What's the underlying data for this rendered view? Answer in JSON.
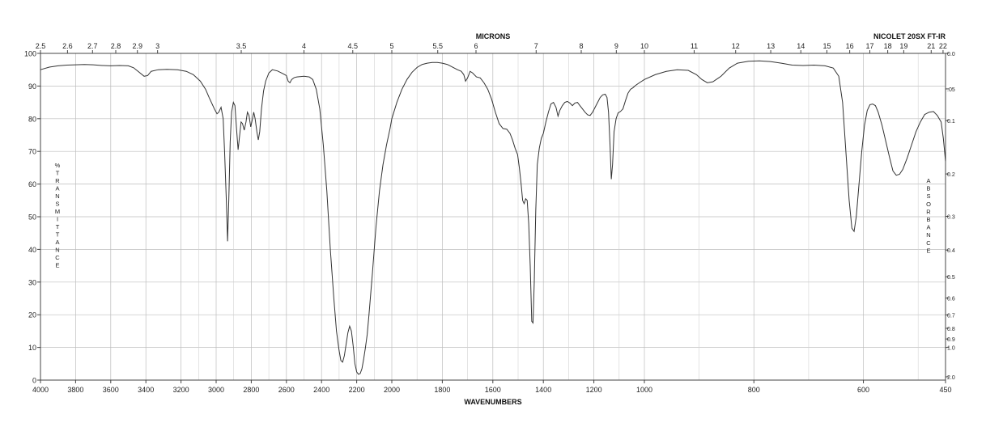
{
  "chart_data": {
    "type": "line",
    "instrument_label": "NICOLET 20SX FT-IR",
    "top_axis_title": "MICRONS",
    "bottom_axis_title": "WAVENUMBERS",
    "left_axis_title": "%\nT\nR\nA\nN\nS\nM\nI\nT\nT\nA\nN\nC\nE",
    "right_axis_title": "A\nB\nS\nO\nR\nB\nA\nN\nC\nE",
    "x_scale": "piecewise-linear wavenumber (4000-2000, 2000-1000, 1000-450 cm-1)",
    "xlim": [
      4000,
      450
    ],
    "ylim": [
      0,
      100
    ],
    "grid": true,
    "x_ticks": [
      {
        "value": 4000,
        "label": "4000"
      },
      {
        "value": 3800,
        "label": "3800"
      },
      {
        "value": 3600,
        "label": "3600"
      },
      {
        "value": 3400,
        "label": "3400"
      },
      {
        "value": 3200,
        "label": "3200"
      },
      {
        "value": 3000,
        "label": "3000"
      },
      {
        "value": 2800,
        "label": "2800"
      },
      {
        "value": 2600,
        "label": "2600"
      },
      {
        "value": 2400,
        "label": "2400"
      },
      {
        "value": 2200,
        "label": "2200"
      },
      {
        "value": 2000,
        "label": "2000"
      },
      {
        "value": 1800,
        "label": "1800"
      },
      {
        "value": 1600,
        "label": "1600"
      },
      {
        "value": 1400,
        "label": "1400"
      },
      {
        "value": 1200,
        "label": "1200"
      },
      {
        "value": 1000,
        "label": "1000"
      },
      {
        "value": 800,
        "label": "800"
      },
      {
        "value": 600,
        "label": "600"
      },
      {
        "value": 450,
        "label": "450"
      }
    ],
    "minor_gridlines_wavenumber": [
      3100,
      2900,
      2700,
      2500,
      2300,
      2100,
      1900,
      1700,
      1500,
      1300,
      1100,
      900,
      700,
      500
    ],
    "micron_ticks": [
      {
        "value": 2.5,
        "label": "2.5"
      },
      {
        "value": 2.6,
        "label": "2.6"
      },
      {
        "value": 2.7,
        "label": "2.7"
      },
      {
        "value": 2.8,
        "label": "2.8"
      },
      {
        "value": 2.9,
        "label": "2.9"
      },
      {
        "value": 3,
        "label": "3"
      },
      {
        "value": 3.5,
        "label": "3.5"
      },
      {
        "value": 4,
        "label": "4"
      },
      {
        "value": 4.5,
        "label": "4.5"
      },
      {
        "value": 5,
        "label": "5"
      },
      {
        "value": 5.5,
        "label": "5.5"
      },
      {
        "value": 6,
        "label": "6"
      },
      {
        "value": 7,
        "label": "7"
      },
      {
        "value": 8,
        "label": "8"
      },
      {
        "value": 9,
        "label": "9"
      },
      {
        "value": 10,
        "label": "10"
      },
      {
        "value": 11,
        "label": "11"
      },
      {
        "value": 12,
        "label": "12"
      },
      {
        "value": 13,
        "label": "13"
      },
      {
        "value": 14,
        "label": "14"
      },
      {
        "value": 15,
        "label": "15"
      },
      {
        "value": 16,
        "label": "16"
      },
      {
        "value": 17,
        "label": "17"
      },
      {
        "value": 18,
        "label": "18"
      },
      {
        "value": 19,
        "label": "19"
      },
      {
        "value": 21,
        "label": "21"
      },
      {
        "value": 22,
        "label": "22"
      }
    ],
    "y_ticks": [
      {
        "value": 0,
        "label": "0"
      },
      {
        "value": 10,
        "label": "10"
      },
      {
        "value": 20,
        "label": "20"
      },
      {
        "value": 30,
        "label": "30"
      },
      {
        "value": 40,
        "label": "40"
      },
      {
        "value": 50,
        "label": "50"
      },
      {
        "value": 60,
        "label": "60"
      },
      {
        "value": 70,
        "label": "70"
      },
      {
        "value": 80,
        "label": "80"
      },
      {
        "value": 90,
        "label": "90"
      },
      {
        "value": 100,
        "label": "100"
      }
    ],
    "absorbance_ticks": [
      {
        "value": 0.0,
        "label": "0.0"
      },
      {
        "value": 0.05,
        "label": ".05"
      },
      {
        "value": 0.1,
        "label": "0.1"
      },
      {
        "value": 0.2,
        "label": "0.2"
      },
      {
        "value": 0.3,
        "label": "0.3"
      },
      {
        "value": 0.4,
        "label": "0.4"
      },
      {
        "value": 0.5,
        "label": "0.5"
      },
      {
        "value": 0.6,
        "label": "0.6"
      },
      {
        "value": 0.7,
        "label": "0.7"
      },
      {
        "value": 0.8,
        "label": "0.8"
      },
      {
        "value": 0.9,
        "label": "0.9"
      },
      {
        "value": 1.0,
        "label": "1.0"
      },
      {
        "value": 2.0,
        "label": "2.0"
      }
    ],
    "series": [
      {
        "color": "#333333",
        "points": [
          [
            4000,
            95.0
          ],
          [
            3950,
            95.8
          ],
          [
            3900,
            96.2
          ],
          [
            3850,
            96.4
          ],
          [
            3800,
            96.5
          ],
          [
            3750,
            96.6
          ],
          [
            3700,
            96.5
          ],
          [
            3650,
            96.3
          ],
          [
            3600,
            96.2
          ],
          [
            3550,
            96.3
          ],
          [
            3500,
            96.2
          ],
          [
            3470,
            95.6
          ],
          [
            3440,
            94.3
          ],
          [
            3410,
            93.0
          ],
          [
            3390,
            93.2
          ],
          [
            3370,
            94.5
          ],
          [
            3330,
            95.0
          ],
          [
            3280,
            95.1
          ],
          [
            3220,
            95.0
          ],
          [
            3170,
            94.5
          ],
          [
            3130,
            93.5
          ],
          [
            3090,
            91.5
          ],
          [
            3060,
            89.0
          ],
          [
            3040,
            86.5
          ],
          [
            3010,
            83.0
          ],
          [
            2995,
            81.5
          ],
          [
            2985,
            82.0
          ],
          [
            2972,
            83.5
          ],
          [
            2960,
            80.0
          ],
          [
            2952,
            70.0
          ],
          [
            2942,
            55.0
          ],
          [
            2935,
            42.5
          ],
          [
            2928,
            55.0
          ],
          [
            2920,
            73.0
          ],
          [
            2912,
            82.0
          ],
          [
            2902,
            85.0
          ],
          [
            2893,
            84.0
          ],
          [
            2884,
            77.0
          ],
          [
            2875,
            70.5
          ],
          [
            2866,
            75.0
          ],
          [
            2858,
            79.0
          ],
          [
            2850,
            78.5
          ],
          [
            2840,
            76.5
          ],
          [
            2830,
            79.0
          ],
          [
            2822,
            82.0
          ],
          [
            2813,
            81.0
          ],
          [
            2803,
            77.5
          ],
          [
            2795,
            79.5
          ],
          [
            2786,
            82.0
          ],
          [
            2778,
            80.0
          ],
          [
            2768,
            76.0
          ],
          [
            2760,
            73.5
          ],
          [
            2752,
            76.0
          ],
          [
            2742,
            83.0
          ],
          [
            2730,
            88.5
          ],
          [
            2718,
            91.5
          ],
          [
            2700,
            94.0
          ],
          [
            2680,
            95.0
          ],
          [
            2650,
            94.6
          ],
          [
            2620,
            93.8
          ],
          [
            2600,
            93.2
          ],
          [
            2590,
            91.5
          ],
          [
            2580,
            91.0
          ],
          [
            2570,
            92.0
          ],
          [
            2555,
            92.6
          ],
          [
            2540,
            92.8
          ],
          [
            2500,
            93.0
          ],
          [
            2470,
            92.8
          ],
          [
            2450,
            92.0
          ],
          [
            2430,
            89.0
          ],
          [
            2410,
            83.0
          ],
          [
            2390,
            72.0
          ],
          [
            2370,
            58.0
          ],
          [
            2350,
            40.0
          ],
          [
            2330,
            25.0
          ],
          [
            2315,
            15.0
          ],
          [
            2300,
            9.0
          ],
          [
            2290,
            6.0
          ],
          [
            2280,
            5.5
          ],
          [
            2270,
            7.5
          ],
          [
            2260,
            11.0
          ],
          [
            2250,
            14.5
          ],
          [
            2240,
            16.5
          ],
          [
            2230,
            15.0
          ],
          [
            2220,
            10.5
          ],
          [
            2210,
            5.0
          ],
          [
            2200,
            2.5
          ],
          [
            2190,
            1.8
          ],
          [
            2180,
            2.0
          ],
          [
            2170,
            3.5
          ],
          [
            2160,
            6.5
          ],
          [
            2150,
            10.0
          ],
          [
            2140,
            14.0
          ],
          [
            2130,
            20.0
          ],
          [
            2110,
            33.0
          ],
          [
            2090,
            47.0
          ],
          [
            2070,
            58.0
          ],
          [
            2050,
            66.0
          ],
          [
            2030,
            72.0
          ],
          [
            2010,
            77.0
          ],
          [
            2000,
            80.0
          ],
          [
            1980,
            85.0
          ],
          [
            1960,
            89.0
          ],
          [
            1940,
            92.0
          ],
          [
            1920,
            94.2
          ],
          [
            1900,
            95.7
          ],
          [
            1880,
            96.6
          ],
          [
            1860,
            97.0
          ],
          [
            1840,
            97.2
          ],
          [
            1820,
            97.2
          ],
          [
            1800,
            97.0
          ],
          [
            1780,
            96.6
          ],
          [
            1760,
            95.8
          ],
          [
            1740,
            95.0
          ],
          [
            1725,
            94.5
          ],
          [
            1715,
            93.5
          ],
          [
            1708,
            91.5
          ],
          [
            1700,
            92.5
          ],
          [
            1690,
            94.5
          ],
          [
            1680,
            94.0
          ],
          [
            1665,
            92.8
          ],
          [
            1650,
            92.5
          ],
          [
            1635,
            91.0
          ],
          [
            1620,
            89.0
          ],
          [
            1605,
            86.0
          ],
          [
            1590,
            82.0
          ],
          [
            1575,
            78.5
          ],
          [
            1560,
            77.0
          ],
          [
            1545,
            76.8
          ],
          [
            1532,
            75.5
          ],
          [
            1522,
            73.5
          ],
          [
            1512,
            71.0
          ],
          [
            1502,
            69.0
          ],
          [
            1495,
            65.0
          ],
          [
            1488,
            60.0
          ],
          [
            1482,
            55.0
          ],
          [
            1476,
            54.0
          ],
          [
            1470,
            55.5
          ],
          [
            1464,
            55.0
          ],
          [
            1458,
            48.0
          ],
          [
            1452,
            35.0
          ],
          [
            1446,
            18.0
          ],
          [
            1441,
            17.5
          ],
          [
            1436,
            30.0
          ],
          [
            1430,
            52.0
          ],
          [
            1424,
            66.0
          ],
          [
            1416,
            71.0
          ],
          [
            1408,
            74.0
          ],
          [
            1400,
            75.5
          ],
          [
            1390,
            79.0
          ],
          [
            1380,
            82.0
          ],
          [
            1370,
            84.5
          ],
          [
            1360,
            85.0
          ],
          [
            1350,
            83.5
          ],
          [
            1342,
            80.8
          ],
          [
            1335,
            82.5
          ],
          [
            1325,
            84.0
          ],
          [
            1315,
            85.0
          ],
          [
            1305,
            85.3
          ],
          [
            1295,
            84.8
          ],
          [
            1285,
            84.0
          ],
          [
            1275,
            84.8
          ],
          [
            1265,
            85.0
          ],
          [
            1255,
            84.0
          ],
          [
            1245,
            83.0
          ],
          [
            1235,
            82.0
          ],
          [
            1225,
            81.2
          ],
          [
            1215,
            81.0
          ],
          [
            1205,
            82.0
          ],
          [
            1195,
            83.5
          ],
          [
            1185,
            85.0
          ],
          [
            1175,
            86.5
          ],
          [
            1165,
            87.3
          ],
          [
            1155,
            87.5
          ],
          [
            1148,
            86.5
          ],
          [
            1142,
            82.0
          ],
          [
            1136,
            72.0
          ],
          [
            1131,
            61.5
          ],
          [
            1126,
            66.0
          ],
          [
            1120,
            76.0
          ],
          [
            1112,
            80.0
          ],
          [
            1104,
            81.8
          ],
          [
            1095,
            82.2
          ],
          [
            1085,
            83.0
          ],
          [
            1075,
            85.5
          ],
          [
            1065,
            87.8
          ],
          [
            1055,
            89.0
          ],
          [
            1045,
            89.5
          ],
          [
            1035,
            90.2
          ],
          [
            1020,
            91.0
          ],
          [
            1000,
            92.0
          ],
          [
            980,
            93.5
          ],
          [
            960,
            94.5
          ],
          [
            940,
            95.0
          ],
          [
            920,
            94.8
          ],
          [
            905,
            93.5
          ],
          [
            895,
            92.0
          ],
          [
            885,
            91.0
          ],
          [
            875,
            91.3
          ],
          [
            860,
            93.0
          ],
          [
            845,
            95.5
          ],
          [
            830,
            97.0
          ],
          [
            810,
            97.6
          ],
          [
            790,
            97.7
          ],
          [
            770,
            97.5
          ],
          [
            750,
            97.0
          ],
          [
            730,
            96.4
          ],
          [
            710,
            96.3
          ],
          [
            690,
            96.4
          ],
          [
            670,
            96.2
          ],
          [
            655,
            95.5
          ],
          [
            645,
            93.0
          ],
          [
            638,
            85.0
          ],
          [
            632,
            70.0
          ],
          [
            626,
            55.0
          ],
          [
            621,
            46.5
          ],
          [
            617,
            45.5
          ],
          [
            613,
            50.0
          ],
          [
            608,
            60.0
          ],
          [
            603,
            70.0
          ],
          [
            598,
            78.0
          ],
          [
            593,
            82.5
          ],
          [
            588,
            84.3
          ],
          [
            583,
            84.5
          ],
          [
            578,
            84.0
          ],
          [
            573,
            82.0
          ],
          [
            566,
            78.0
          ],
          [
            559,
            73.0
          ],
          [
            552,
            68.0
          ],
          [
            546,
            64.0
          ],
          [
            540,
            62.7
          ],
          [
            534,
            63.0
          ],
          [
            528,
            64.5
          ],
          [
            520,
            68.0
          ],
          [
            512,
            72.0
          ],
          [
            504,
            76.0
          ],
          [
            496,
            79.0
          ],
          [
            488,
            81.3
          ],
          [
            480,
            82.0
          ],
          [
            472,
            82.2
          ],
          [
            465,
            81.0
          ],
          [
            458,
            79.0
          ],
          [
            454,
            74.0
          ],
          [
            450,
            67.0
          ]
        ]
      }
    ]
  }
}
